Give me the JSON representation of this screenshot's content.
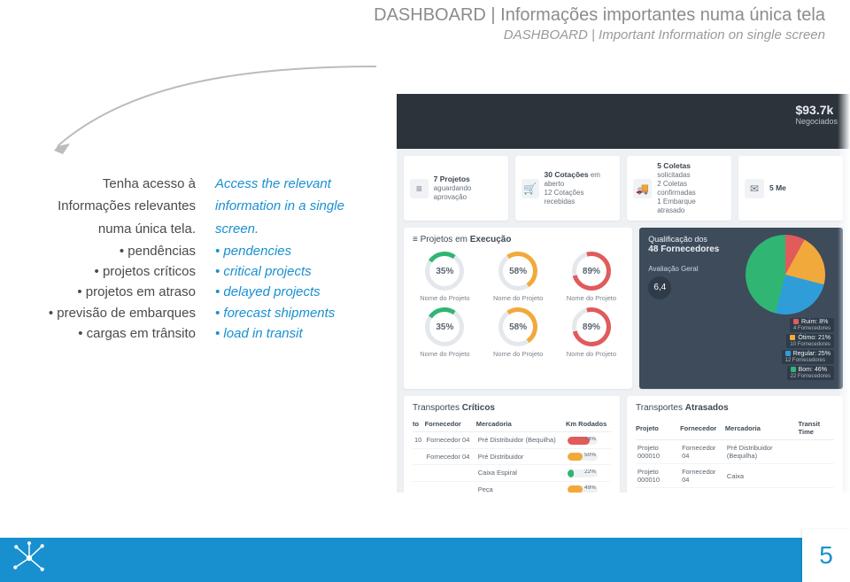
{
  "header": {
    "title_pt": "DASHBOARD | Informações importantes numa única tela",
    "title_en": "DASHBOARD | Important Information on single screen"
  },
  "intro": {
    "pt": {
      "lines": [
        "Tenha acesso à",
        "Informações relevantes",
        "numa única tela."
      ],
      "bullets": [
        "pendências",
        "projetos críticos",
        "projetos em atraso",
        "previsão de embarques",
        "cargas em trânsito"
      ]
    },
    "en": {
      "lines": [
        "Access the relevant",
        "information in a single",
        "screen."
      ],
      "bullets": [
        "pendencies",
        "critical projects",
        "delayed projects",
        "forecast shipments",
        "load in transit"
      ]
    }
  },
  "hero": {
    "value": "$93.7k",
    "label": "Negociados"
  },
  "statCards": [
    {
      "icon": "≡",
      "line1_b": "7 Projetos",
      "line1_r": "",
      "line2": "aguardando aprovação"
    },
    {
      "icon": "🛒",
      "line1_b": "30 Cotações",
      "line1_r": "em aberto",
      "line2": "12 Cotações recebidas"
    },
    {
      "icon": "🚚",
      "line1_b": "5 Coletas",
      "line1_r": "solicitadas",
      "line2": "2 Coletas confirmadas",
      "line3": "1 Embarque atrasado"
    },
    {
      "icon": "✉",
      "line1_b": "5 Me",
      "line1_r": "",
      "line2": ""
    }
  ],
  "exec": {
    "title_pre": "Projetos em ",
    "title_bold": "Execução",
    "dials": [
      {
        "pct": "35%",
        "cls": "p35",
        "label": "Nome do Projeto"
      },
      {
        "pct": "58%",
        "cls": "p58",
        "label": "Nome do Projeto"
      },
      {
        "pct": "89%",
        "cls": "p89",
        "label": "Nome do Projeto"
      },
      {
        "pct": "35%",
        "cls": "p35",
        "label": "Nome do Projeto"
      },
      {
        "pct": "58%",
        "cls": "p58",
        "label": "Nome do Projeto"
      },
      {
        "pct": "89%",
        "cls": "p89",
        "label": "Nome do Projeto"
      }
    ]
  },
  "qual": {
    "title_pre": "Qualificação dos",
    "title_bold": "48 Fornecedores",
    "rating_label": "Avaliação Geral",
    "rating": "6,4",
    "slices": [
      {
        "label": "Ruim: 8%",
        "sub": "4 Fornecedores",
        "color": "#e05b5b"
      },
      {
        "label": "Ótimo: 21%",
        "sub": "10 Fornecedores",
        "color": "#f2a93b"
      },
      {
        "label": "Regular: 25%",
        "sub": "12 Fornecedores",
        "color": "#2f9ed8"
      },
      {
        "label": "Bom: 46%",
        "sub": "22 Fornecedores",
        "color": "#30b573"
      }
    ]
  },
  "tables": {
    "critical": {
      "title_pre": "Transportes ",
      "title_bold": "Críticos",
      "columns": [
        "to",
        "Fornecedor",
        "Mercadoria",
        "Km Rodados"
      ],
      "rows": [
        {
          "c0": "10",
          "c1": "Fornecedor 04",
          "c2": "Pré Distribuidor (Bequilha)",
          "pct": 73,
          "color": "#e05b5b"
        },
        {
          "c0": "",
          "c1": "Fornecedor 04",
          "c2": "Pré Distribuidor",
          "pct": 50,
          "color": "#f2a93b"
        },
        {
          "c0": "",
          "c1": "",
          "c2": "Caixa Espiral",
          "pct": 22,
          "color": "#30b573"
        },
        {
          "c0": "",
          "c1": "",
          "c2": "Peça",
          "pct": 49,
          "color": "#f2a93b"
        }
      ]
    },
    "delayed": {
      "title_pre": "Transportes ",
      "title_bold": "Atrasados",
      "columns": [
        "Projeto",
        "Fornecedor",
        "Mercadoria",
        "Transit Time"
      ],
      "rows": [
        {
          "c0": "Projeto 000010",
          "c1": "Fornecedor 04",
          "c2": "Pré Distribuidor (Bequilha)"
        },
        {
          "c0": "Projeto 000010",
          "c1": "Fornecedor 04",
          "c2": "Caixa"
        },
        {
          "c0": "Projeto 000010",
          "c1": "Fornecedor 04",
          "c2": "Caixa"
        },
        {
          "c0": "Projeto 000008",
          "c1": "F",
          "c2": ""
        }
      ]
    }
  },
  "page_number": "5",
  "colors": {
    "accent": "#1890d0",
    "text_muted": "#8c8c8c",
    "dark_panel": "#3d4b5a"
  }
}
